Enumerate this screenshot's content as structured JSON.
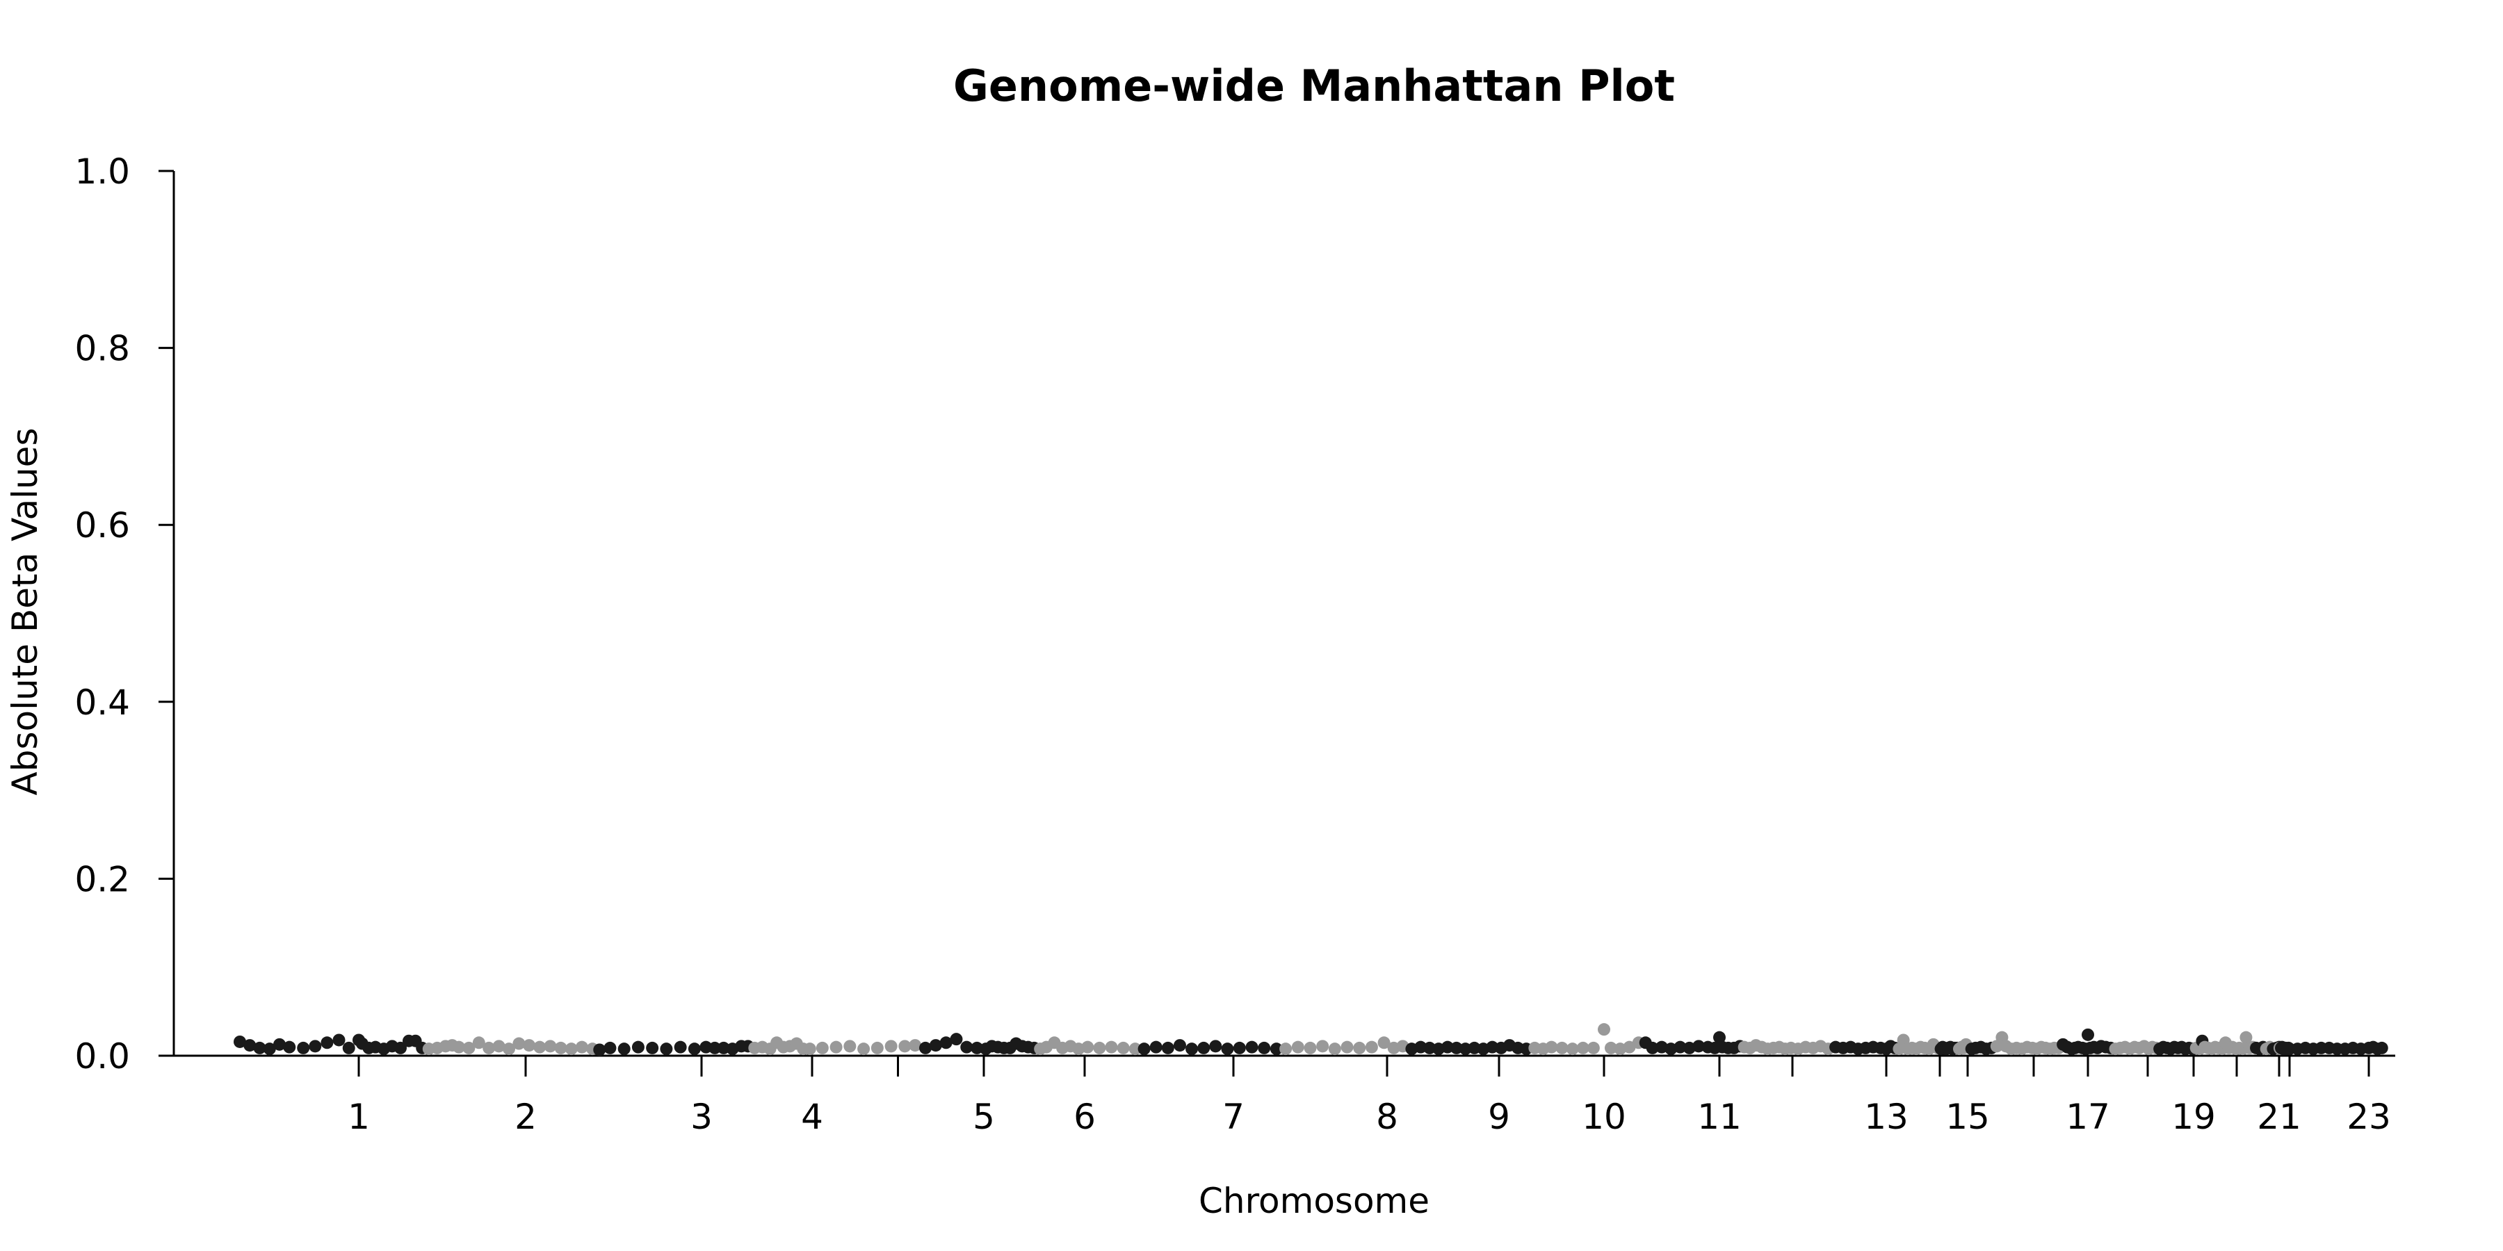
{
  "chart_data": {
    "type": "scatter",
    "title": "Genome-wide Manhattan Plot",
    "xlabel": "Chromosome",
    "ylabel": "Absolute Beta Values",
    "ylim": [
      0,
      1.0
    ],
    "yticks": [
      "0.0",
      "0.2",
      "0.4",
      "0.6",
      "0.8",
      "1.0"
    ],
    "grid": false,
    "legend": "none",
    "point_colors": [
      "#1a1a1a",
      "#999999"
    ],
    "x_tick_labels": [
      {
        "label": "1",
        "pos": 1
      },
      {
        "label": "2",
        "pos": 2
      },
      {
        "label": "3",
        "pos": 3
      },
      {
        "label": "4",
        "pos": 4
      },
      {
        "label": "",
        "pos": 4.5
      },
      {
        "label": "5",
        "pos": 5
      },
      {
        "label": "6",
        "pos": 6
      },
      {
        "label": "7",
        "pos": 7
      },
      {
        "label": "8",
        "pos": 8
      },
      {
        "label": "9",
        "pos": 9
      },
      {
        "label": "10",
        "pos": 10
      },
      {
        "label": "11",
        "pos": 11
      },
      {
        "label": "",
        "pos": 12
      },
      {
        "label": "13",
        "pos": 13
      },
      {
        "label": "",
        "pos": 14
      },
      {
        "label": "15",
        "pos": 15
      },
      {
        "label": "",
        "pos": 16
      },
      {
        "label": "17",
        "pos": 17
      },
      {
        "label": "",
        "pos": 18
      },
      {
        "label": "19",
        "pos": 19
      },
      {
        "label": "",
        "pos": 20
      },
      {
        "label": "21",
        "pos": 21
      },
      {
        "label": "",
        "pos": 22
      },
      {
        "label": "23",
        "pos": 23
      }
    ],
    "points": [
      [
        0.4,
        0.011,
        0
      ],
      [
        0.45,
        0.007,
        0
      ],
      [
        0.5,
        0.004,
        0
      ],
      [
        0.55,
        0.003,
        0
      ],
      [
        0.6,
        0.008,
        0
      ],
      [
        0.65,
        0.005,
        0
      ],
      [
        0.72,
        0.004,
        0
      ],
      [
        0.78,
        0.006,
        0
      ],
      [
        0.84,
        0.01,
        0
      ],
      [
        0.9,
        0.013,
        0
      ],
      [
        0.95,
        0.004,
        0
      ],
      [
        1.0,
        0.013,
        0
      ],
      [
        1.02,
        0.009,
        0
      ],
      [
        1.06,
        0.004,
        0
      ],
      [
        1.1,
        0.005,
        0
      ],
      [
        1.15,
        0.003,
        0
      ],
      [
        1.2,
        0.006,
        0
      ],
      [
        1.25,
        0.004,
        0
      ],
      [
        1.3,
        0.012,
        0
      ],
      [
        1.34,
        0.012,
        0
      ],
      [
        1.38,
        0.004,
        0
      ],
      [
        1.42,
        0.003,
        1
      ],
      [
        1.47,
        0.004,
        1
      ],
      [
        1.52,
        0.006,
        1
      ],
      [
        1.56,
        0.007,
        1
      ],
      [
        1.6,
        0.005,
        1
      ],
      [
        1.66,
        0.004,
        1
      ],
      [
        1.72,
        0.01,
        1
      ],
      [
        1.78,
        0.004,
        1
      ],
      [
        1.84,
        0.006,
        1
      ],
      [
        1.9,
        0.003,
        1
      ],
      [
        1.96,
        0.009,
        1
      ],
      [
        2.02,
        0.007,
        1
      ],
      [
        2.08,
        0.005,
        1
      ],
      [
        2.14,
        0.006,
        1
      ],
      [
        2.2,
        0.004,
        1
      ],
      [
        2.26,
        0.003,
        1
      ],
      [
        2.32,
        0.005,
        1
      ],
      [
        2.38,
        0.003,
        1
      ],
      [
        2.42,
        0.002,
        0
      ],
      [
        2.48,
        0.004,
        0
      ],
      [
        2.56,
        0.003,
        0
      ],
      [
        2.64,
        0.005,
        0
      ],
      [
        2.72,
        0.004,
        0
      ],
      [
        2.8,
        0.003,
        0
      ],
      [
        2.88,
        0.005,
        0
      ],
      [
        2.96,
        0.003,
        0
      ],
      [
        3.04,
        0.005,
        0
      ],
      [
        3.12,
        0.004,
        0
      ],
      [
        3.2,
        0.004,
        0
      ],
      [
        3.28,
        0.003,
        0
      ],
      [
        3.36,
        0.006,
        0
      ],
      [
        3.42,
        0.006,
        0
      ],
      [
        3.48,
        0.004,
        1
      ],
      [
        3.55,
        0.005,
        1
      ],
      [
        3.62,
        0.003,
        1
      ],
      [
        3.68,
        0.01,
        1
      ],
      [
        3.74,
        0.005,
        1
      ],
      [
        3.8,
        0.006,
        1
      ],
      [
        3.86,
        0.009,
        1
      ],
      [
        3.92,
        0.003,
        1
      ],
      [
        3.98,
        0.003,
        1
      ],
      [
        4.06,
        0.004,
        1
      ],
      [
        4.14,
        0.005,
        1
      ],
      [
        4.22,
        0.006,
        1
      ],
      [
        4.3,
        0.003,
        1
      ],
      [
        4.38,
        0.004,
        1
      ],
      [
        4.46,
        0.006,
        1
      ],
      [
        4.54,
        0.006,
        1
      ],
      [
        4.6,
        0.007,
        1
      ],
      [
        4.66,
        0.004,
        0
      ],
      [
        4.72,
        0.007,
        0
      ],
      [
        4.78,
        0.01,
        0
      ],
      [
        4.84,
        0.014,
        0
      ],
      [
        4.9,
        0.005,
        0
      ],
      [
        4.96,
        0.004,
        0
      ],
      [
        5.02,
        0.003,
        0
      ],
      [
        5.08,
        0.006,
        0
      ],
      [
        5.14,
        0.005,
        0
      ],
      [
        5.2,
        0.004,
        0
      ],
      [
        5.26,
        0.004,
        0
      ],
      [
        5.32,
        0.009,
        0
      ],
      [
        5.38,
        0.006,
        0
      ],
      [
        5.44,
        0.005,
        0
      ],
      [
        5.5,
        0.004,
        0
      ],
      [
        5.56,
        0.003,
        1
      ],
      [
        5.62,
        0.005,
        1
      ],
      [
        5.7,
        0.01,
        1
      ],
      [
        5.78,
        0.004,
        1
      ],
      [
        5.86,
        0.006,
        1
      ],
      [
        5.94,
        0.003,
        1
      ],
      [
        6.02,
        0.005,
        1
      ],
      [
        6.1,
        0.004,
        1
      ],
      [
        6.18,
        0.005,
        1
      ],
      [
        6.26,
        0.004,
        1
      ],
      [
        6.34,
        0.003,
        1
      ],
      [
        6.4,
        0.003,
        0
      ],
      [
        6.48,
        0.005,
        0
      ],
      [
        6.56,
        0.004,
        0
      ],
      [
        6.64,
        0.007,
        0
      ],
      [
        6.72,
        0.003,
        0
      ],
      [
        6.8,
        0.004,
        0
      ],
      [
        6.88,
        0.006,
        0
      ],
      [
        6.96,
        0.003,
        0
      ],
      [
        7.04,
        0.004,
        0
      ],
      [
        7.12,
        0.005,
        0
      ],
      [
        7.2,
        0.004,
        0
      ],
      [
        7.28,
        0.003,
        0
      ],
      [
        7.34,
        0.003,
        1
      ],
      [
        7.42,
        0.005,
        1
      ],
      [
        7.5,
        0.004,
        1
      ],
      [
        7.58,
        0.006,
        1
      ],
      [
        7.66,
        0.003,
        1
      ],
      [
        7.74,
        0.005,
        1
      ],
      [
        7.82,
        0.004,
        1
      ],
      [
        7.9,
        0.005,
        1
      ],
      [
        7.98,
        0.01,
        1
      ],
      [
        8.06,
        0.004,
        1
      ],
      [
        8.14,
        0.006,
        1
      ],
      [
        8.22,
        0.003,
        0
      ],
      [
        8.3,
        0.005,
        0
      ],
      [
        8.38,
        0.004,
        0
      ],
      [
        8.46,
        0.003,
        0
      ],
      [
        8.54,
        0.005,
        0
      ],
      [
        8.62,
        0.004,
        0
      ],
      [
        8.7,
        0.003,
        0
      ],
      [
        8.78,
        0.004,
        0
      ],
      [
        8.86,
        0.003,
        0
      ],
      [
        8.94,
        0.005,
        0
      ],
      [
        9.02,
        0.004,
        0
      ],
      [
        9.1,
        0.007,
        0
      ],
      [
        9.18,
        0.004,
        0
      ],
      [
        9.26,
        0.003,
        0
      ],
      [
        9.34,
        0.004,
        1
      ],
      [
        9.42,
        0.003,
        1
      ],
      [
        9.5,
        0.005,
        1
      ],
      [
        9.6,
        0.004,
        1
      ],
      [
        9.7,
        0.003,
        1
      ],
      [
        9.8,
        0.004,
        1
      ],
      [
        9.9,
        0.004,
        1
      ],
      [
        10.0,
        0.025,
        1
      ],
      [
        10.06,
        0.004,
        1
      ],
      [
        10.14,
        0.003,
        1
      ],
      [
        10.22,
        0.005,
        1
      ],
      [
        10.3,
        0.01,
        1
      ],
      [
        10.36,
        0.01,
        0
      ],
      [
        10.42,
        0.004,
        0
      ],
      [
        10.5,
        0.005,
        0
      ],
      [
        10.58,
        0.003,
        0
      ],
      [
        10.66,
        0.005,
        0
      ],
      [
        10.74,
        0.004,
        0
      ],
      [
        10.82,
        0.006,
        0
      ],
      [
        10.9,
        0.005,
        0
      ],
      [
        10.96,
        0.004,
        0
      ],
      [
        11.0,
        0.016,
        0
      ],
      [
        11.04,
        0.005,
        0
      ],
      [
        11.12,
        0.004,
        0
      ],
      [
        11.2,
        0.004,
        0
      ],
      [
        11.28,
        0.006,
        0
      ],
      [
        11.34,
        0.005,
        1
      ],
      [
        11.42,
        0.004,
        1
      ],
      [
        11.5,
        0.007,
        1
      ],
      [
        11.58,
        0.005,
        1
      ],
      [
        11.66,
        0.003,
        1
      ],
      [
        11.74,
        0.004,
        1
      ],
      [
        11.82,
        0.005,
        1
      ],
      [
        11.9,
        0.003,
        1
      ],
      [
        11.98,
        0.004,
        1
      ],
      [
        12.06,
        0.003,
        1
      ],
      [
        12.14,
        0.005,
        1
      ],
      [
        12.22,
        0.004,
        1
      ],
      [
        12.3,
        0.006,
        1
      ],
      [
        12.38,
        0.003,
        1
      ],
      [
        12.46,
        0.005,
        0
      ],
      [
        12.54,
        0.004,
        0
      ],
      [
        12.62,
        0.005,
        0
      ],
      [
        12.7,
        0.003,
        0
      ],
      [
        12.78,
        0.004,
        0
      ],
      [
        12.86,
        0.005,
        0
      ],
      [
        12.94,
        0.004,
        0
      ],
      [
        13.0,
        0.003,
        0
      ],
      [
        13.08,
        0.006,
        0
      ],
      [
        13.16,
        0.004,
        0
      ],
      [
        13.24,
        0.003,
        1
      ],
      [
        13.32,
        0.013,
        1
      ],
      [
        13.4,
        0.003,
        1
      ],
      [
        13.48,
        0.004,
        1
      ],
      [
        13.56,
        0.003,
        1
      ],
      [
        13.64,
        0.005,
        1
      ],
      [
        13.72,
        0.004,
        1
      ],
      [
        13.8,
        0.003,
        1
      ],
      [
        13.88,
        0.008,
        1
      ],
      [
        13.96,
        0.004,
        1
      ],
      [
        14.04,
        0.003,
        0
      ],
      [
        14.1,
        0.005,
        0
      ],
      [
        14.16,
        0.004,
        0
      ],
      [
        14.22,
        0.003,
        0
      ],
      [
        14.3,
        0.004,
        0
      ],
      [
        14.38,
        0.005,
        0
      ],
      [
        14.46,
        0.003,
        0
      ],
      [
        14.54,
        0.004,
        0
      ],
      [
        14.62,
        0.004,
        0
      ],
      [
        14.7,
        0.003,
        1
      ],
      [
        14.78,
        0.005,
        1
      ],
      [
        14.86,
        0.004,
        1
      ],
      [
        14.94,
        0.008,
        1
      ],
      [
        15.0,
        0.005,
        1
      ],
      [
        15.06,
        0.003,
        0
      ],
      [
        15.12,
        0.004,
        0
      ],
      [
        15.2,
        0.005,
        0
      ],
      [
        15.28,
        0.003,
        0
      ],
      [
        15.36,
        0.004,
        0
      ],
      [
        15.44,
        0.006,
        1
      ],
      [
        15.52,
        0.016,
        1
      ],
      [
        15.58,
        0.006,
        1
      ],
      [
        15.66,
        0.003,
        1
      ],
      [
        15.74,
        0.004,
        1
      ],
      [
        15.82,
        0.003,
        1
      ],
      [
        15.9,
        0.005,
        1
      ],
      [
        15.98,
        0.004,
        1
      ],
      [
        16.06,
        0.003,
        1
      ],
      [
        16.14,
        0.005,
        1
      ],
      [
        16.22,
        0.004,
        1
      ],
      [
        16.3,
        0.003,
        1
      ],
      [
        16.38,
        0.004,
        1
      ],
      [
        16.46,
        0.004,
        1
      ],
      [
        16.54,
        0.008,
        0
      ],
      [
        16.62,
        0.005,
        0
      ],
      [
        16.7,
        0.003,
        0
      ],
      [
        16.76,
        0.004,
        0
      ],
      [
        16.82,
        0.005,
        0
      ],
      [
        16.9,
        0.004,
        0
      ],
      [
        16.96,
        0.003,
        0
      ],
      [
        17.0,
        0.019,
        0
      ],
      [
        17.04,
        0.004,
        0
      ],
      [
        17.1,
        0.005,
        0
      ],
      [
        17.16,
        0.004,
        0
      ],
      [
        17.22,
        0.006,
        0
      ],
      [
        17.3,
        0.005,
        0
      ],
      [
        17.38,
        0.004,
        0
      ],
      [
        17.46,
        0.003,
        1
      ],
      [
        17.54,
        0.004,
        1
      ],
      [
        17.62,
        0.005,
        1
      ],
      [
        17.7,
        0.003,
        1
      ],
      [
        17.78,
        0.005,
        1
      ],
      [
        17.86,
        0.004,
        1
      ],
      [
        17.94,
        0.006,
        1
      ],
      [
        18.02,
        0.003,
        1
      ],
      [
        18.1,
        0.005,
        1
      ],
      [
        18.18,
        0.004,
        1
      ],
      [
        18.26,
        0.003,
        0
      ],
      [
        18.34,
        0.005,
        0
      ],
      [
        18.42,
        0.004,
        0
      ],
      [
        18.5,
        0.003,
        0
      ],
      [
        18.58,
        0.005,
        0
      ],
      [
        18.66,
        0.004,
        0
      ],
      [
        18.74,
        0.005,
        0
      ],
      [
        18.82,
        0.003,
        0
      ],
      [
        18.9,
        0.004,
        0
      ],
      [
        18.98,
        0.003,
        0
      ],
      [
        19.06,
        0.004,
        1
      ],
      [
        19.14,
        0.003,
        1
      ],
      [
        19.2,
        0.012,
        0
      ],
      [
        19.26,
        0.005,
        1
      ],
      [
        19.34,
        0.004,
        1
      ],
      [
        19.42,
        0.003,
        1
      ],
      [
        19.5,
        0.005,
        1
      ],
      [
        19.58,
        0.004,
        1
      ],
      [
        19.66,
        0.003,
        1
      ],
      [
        19.74,
        0.01,
        1
      ],
      [
        19.82,
        0.004,
        1
      ],
      [
        19.9,
        0.005,
        1
      ],
      [
        19.98,
        0.003,
        1
      ],
      [
        20.06,
        0.004,
        1
      ],
      [
        20.14,
        0.003,
        1
      ],
      [
        20.22,
        0.016,
        1
      ],
      [
        20.3,
        0.004,
        1
      ],
      [
        20.38,
        0.005,
        1
      ],
      [
        20.46,
        0.004,
        0
      ],
      [
        20.54,
        0.003,
        0
      ],
      [
        20.62,
        0.005,
        0
      ],
      [
        20.7,
        0.003,
        1
      ],
      [
        20.78,
        0.005,
        1
      ],
      [
        20.86,
        0.003,
        0
      ],
      [
        20.94,
        0.004,
        0
      ],
      [
        21.0,
        0.005,
        0
      ],
      [
        21.06,
        0.004,
        1
      ],
      [
        21.12,
        0.003,
        1
      ],
      [
        21.2,
        0.004,
        0
      ],
      [
        21.28,
        0.005,
        0
      ],
      [
        21.36,
        0.003,
        0
      ],
      [
        21.44,
        0.004,
        0
      ],
      [
        21.52,
        0.003,
        0
      ],
      [
        21.6,
        0.004,
        0
      ],
      [
        21.7,
        0.003,
        0
      ],
      [
        21.8,
        0.003,
        0
      ],
      [
        21.9,
        0.004,
        0
      ],
      [
        22.0,
        0.003,
        0
      ],
      [
        22.1,
        0.003,
        0
      ],
      [
        22.2,
        0.004,
        0
      ],
      [
        22.3,
        0.003,
        0
      ],
      [
        22.4,
        0.004,
        0
      ],
      [
        22.5,
        0.004,
        0
      ],
      [
        22.6,
        0.003,
        0
      ],
      [
        22.7,
        0.003,
        0
      ],
      [
        22.8,
        0.004,
        0
      ],
      [
        22.9,
        0.003,
        0
      ],
      [
        23.0,
        0.004,
        0
      ],
      [
        23.05,
        0.005,
        0
      ],
      [
        23.1,
        0.003,
        0
      ],
      [
        23.15,
        0.004,
        0
      ]
    ]
  }
}
